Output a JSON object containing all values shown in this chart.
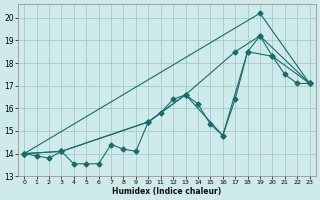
{
  "xlabel": "Humidex (Indice chaleur)",
  "bg_color": "#ceeaea",
  "grid_color": "#aacece",
  "line_color": "#1a6b6b",
  "xlim": [
    -0.5,
    23.5
  ],
  "ylim": [
    13.0,
    20.6
  ],
  "xticks": [
    0,
    1,
    2,
    3,
    4,
    5,
    6,
    7,
    8,
    9,
    10,
    11,
    12,
    13,
    14,
    15,
    16,
    17,
    18,
    19,
    20,
    21,
    22,
    23
  ],
  "yticks": [
    13,
    14,
    15,
    16,
    17,
    18,
    19,
    20
  ],
  "line1_x": [
    0,
    1,
    2,
    3,
    4,
    5,
    6,
    7,
    8,
    9,
    10,
    11,
    12,
    13,
    14,
    15,
    16,
    17,
    18,
    19,
    20,
    21,
    22,
    23
  ],
  "line1_y": [
    14.0,
    13.9,
    13.8,
    14.1,
    13.55,
    13.55,
    13.55,
    14.4,
    14.2,
    14.1,
    15.4,
    15.8,
    16.4,
    16.6,
    16.2,
    15.3,
    14.8,
    16.4,
    18.5,
    19.2,
    18.3,
    17.5,
    17.1,
    17.1
  ],
  "line2_x": [
    0,
    3,
    10,
    13,
    16,
    18,
    20,
    23
  ],
  "line2_y": [
    14.0,
    14.1,
    15.4,
    16.6,
    14.8,
    18.5,
    18.3,
    17.1
  ],
  "line3_x": [
    0,
    3,
    10,
    13,
    17,
    19,
    23
  ],
  "line3_y": [
    14.0,
    14.1,
    15.4,
    16.6,
    18.5,
    19.2,
    17.1
  ],
  "line4_x": [
    0,
    19,
    23
  ],
  "line4_y": [
    14.0,
    20.2,
    17.1
  ]
}
